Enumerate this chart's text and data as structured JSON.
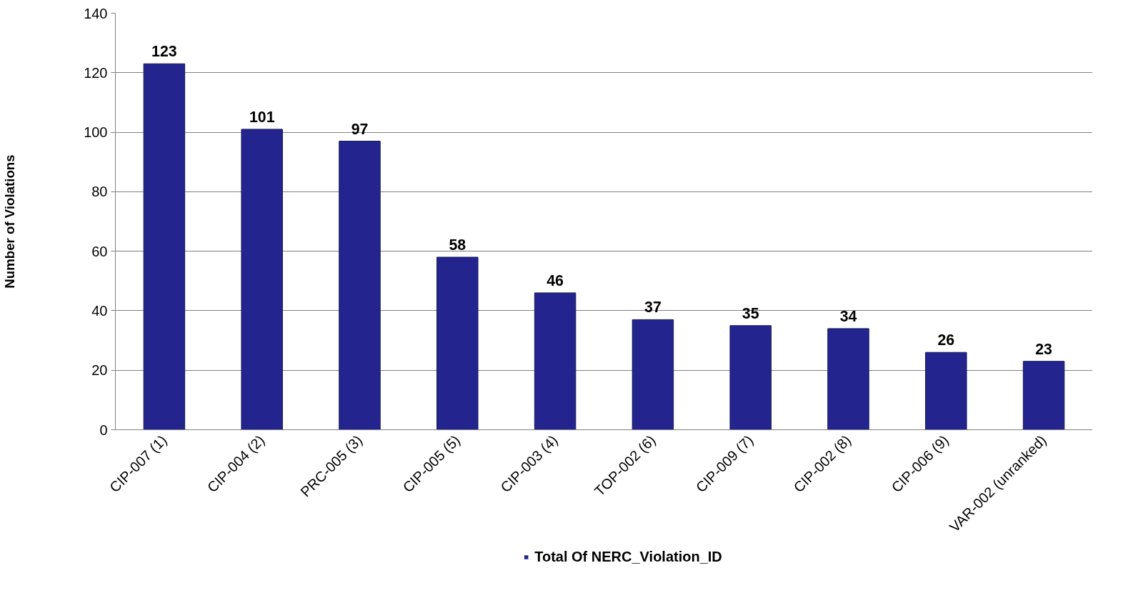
{
  "chart_data": {
    "type": "bar",
    "ylabel": "Number of Violations",
    "categories": [
      "CIP-007 (1)",
      "CIP-004 (2)",
      "PRC-005 (3)",
      "CIP-005 (5)",
      "CIP-003 (4)",
      "TOP-002 (6)",
      "CIP-009 (7)",
      "CIP-002 (8)",
      "CIP-006 (9)",
      "VAR-002 (unranked)"
    ],
    "series": [
      {
        "name": "Total Of NERC_Violation_ID",
        "color": "#24248f",
        "values": [
          123,
          101,
          97,
          58,
          46,
          37,
          35,
          34,
          26,
          23
        ]
      }
    ],
    "ylim": [
      0,
      140
    ],
    "yticks": [
      0,
      20,
      40,
      60,
      80,
      100,
      120,
      140
    ],
    "grid": "y",
    "legend": "bottom",
    "data_labels": true
  }
}
